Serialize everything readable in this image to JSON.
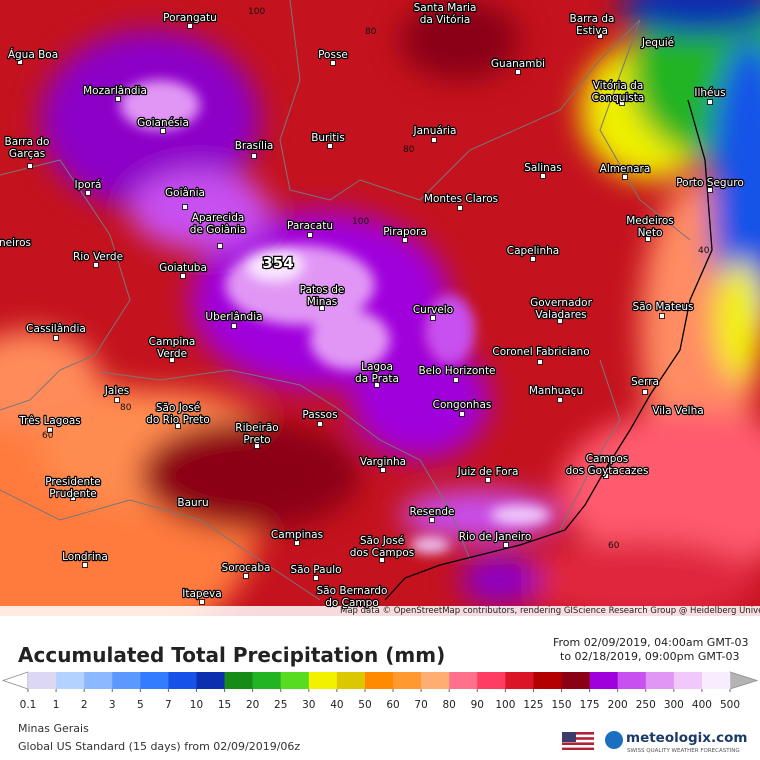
{
  "map": {
    "cities": [
      [
        "Porangatu"
      ],
      [
        "Posse"
      ],
      [
        "Santa Maria",
        "da Vitória"
      ],
      [
        "Barra da",
        "Estiva"
      ],
      [
        "Jequié"
      ],
      [
        "Água Boa"
      ],
      [
        "Guanambi"
      ],
      [
        "Mozarlândia"
      ],
      [
        "Vitória da",
        "Conquista"
      ],
      [
        "Ilhéus"
      ],
      [
        "Goianésia"
      ],
      [
        "Buritis"
      ],
      [
        "Januária"
      ],
      [
        "Barra do",
        "Garças"
      ],
      [
        "Brasília"
      ],
      [
        "Salinas"
      ],
      [
        "Almenara"
      ],
      [
        "Iporá"
      ],
      [
        "Goiânia"
      ],
      [
        "Porto Seguro"
      ],
      [
        "Montes Claros"
      ],
      [
        "Aparecida",
        "de Goiânia"
      ],
      [
        "Paracatu"
      ],
      [
        "Medeiros",
        "Neto"
      ],
      [
        "Pirapora"
      ],
      [
        "neiros"
      ],
      [
        "Rio Verde"
      ],
      [
        "Capelinha"
      ],
      [
        "Goiatuba"
      ],
      [
        "Patos de",
        "Minas"
      ],
      [
        "Governador",
        "Valadares"
      ],
      [
        "São Mateus"
      ],
      [
        "Curvelo"
      ],
      [
        "Uberlândia"
      ],
      [
        "Cassilândia"
      ],
      [
        "Campina",
        "Verde"
      ],
      [
        "Coronel Fabriciano"
      ],
      [
        "Lagoa",
        "da Prata"
      ],
      [
        "Belo Horizonte"
      ],
      [
        "Serra"
      ],
      [
        "Manhuaçu"
      ],
      [
        "Jales"
      ],
      [
        "São José",
        "do Rio Preto"
      ],
      [
        "Congonhas"
      ],
      [
        "Vila Velha"
      ],
      [
        "Três Lagoas"
      ],
      [
        "Passos"
      ],
      [
        "Ribeirão",
        "Preto"
      ],
      [
        "Campos",
        "dos Goytacazes"
      ],
      [
        "Varginha"
      ],
      [
        "Juiz de Fora"
      ],
      [
        "Presidente",
        "Prudente"
      ],
      [
        "Bauru"
      ],
      [
        "Resende"
      ],
      [
        "Campinas"
      ],
      [
        "Rio de Janeiro"
      ],
      [
        "São José",
        "dos Campos"
      ],
      [
        "Londrina"
      ],
      [
        "Sorocaba"
      ],
      [
        "São Paulo"
      ],
      [
        "São Bernardo",
        "do Campo"
      ],
      [
        "Itapeva"
      ]
    ],
    "max_value": 354,
    "contour_labels": [
      100,
      80,
      80,
      100,
      60,
      40,
      60,
      80
    ],
    "attribution": "Map data © OpenStreetMap contributors, rendering GIScience Research Group @ Heidelberg University"
  },
  "legend": {
    "title": "Accumulated Total Precipitation (mm)",
    "period_from": "From 02/09/2019, 04:00am GMT-03",
    "period_to": "to 02/18/2019, 09:00pm GMT-03",
    "ticks": [
      0.1,
      1,
      2,
      3,
      5,
      7,
      10,
      15,
      20,
      25,
      30,
      40,
      50,
      60,
      70,
      80,
      90,
      100,
      125,
      150,
      175,
      200,
      250,
      300,
      400,
      500
    ],
    "colors": [
      "#dcd8f4",
      "#b4d2ff",
      "#8cb8ff",
      "#5a9aff",
      "#347cff",
      "#1652e8",
      "#0c2fb0",
      "#168c16",
      "#22b422",
      "#58dc22",
      "#f2f200",
      "#dcc800",
      "#ff8a00",
      "#ff9a30",
      "#ffae72",
      "#ff708c",
      "#ff3c62",
      "#dc1428",
      "#b40000",
      "#8a0014",
      "#a000dc",
      "#c850f0",
      "#e196f5",
      "#f0c8fa",
      "#f8ecff"
    ]
  },
  "footer": {
    "region": "Minas Gerais",
    "model": "Global US Standard (15 days) from 02/09/2019/06z",
    "brand": "meteologix.com",
    "tagline": "SWISS QUALITY WEATHER FORECASTING"
  }
}
